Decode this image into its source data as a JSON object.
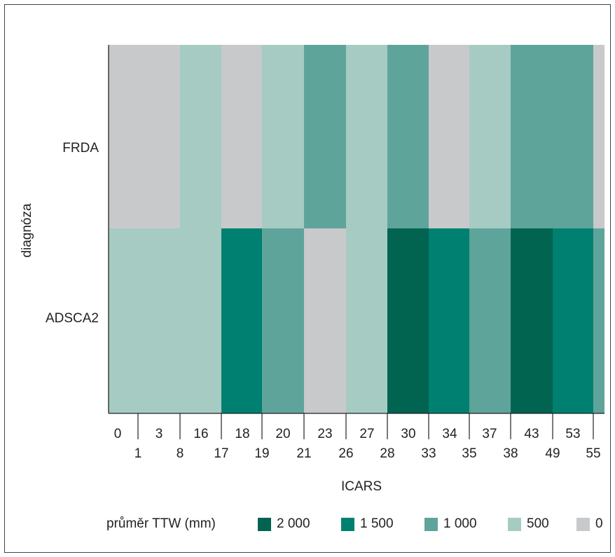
{
  "chart_data": {
    "type": "heatmap",
    "title": "",
    "xlabel": "ICARS",
    "ylabel": "diagnóza",
    "rows": [
      "FRDA",
      "ADSCA2"
    ],
    "x_edges": [
      0,
      1,
      3,
      8,
      16,
      17,
      18,
      19,
      20,
      21,
      23,
      26,
      27,
      28,
      30,
      33,
      34,
      35,
      37,
      38,
      43,
      49,
      53,
      55
    ],
    "cells": {
      "FRDA": [
        {
          "from": 0,
          "to": 8,
          "value": 0
        },
        {
          "from": 8,
          "to": 17,
          "value": 500
        },
        {
          "from": 17,
          "to": 19,
          "value": 0
        },
        {
          "from": 19,
          "to": 21,
          "value": 500
        },
        {
          "from": 21,
          "to": 26,
          "value": 1000
        },
        {
          "from": 26,
          "to": 28,
          "value": 500
        },
        {
          "from": 28,
          "to": 33,
          "value": 1000
        },
        {
          "from": 33,
          "to": 35,
          "value": 0
        },
        {
          "from": 35,
          "to": 38,
          "value": 500
        },
        {
          "from": 38,
          "to": 55,
          "value": 1000
        },
        {
          "from": 55,
          "to": null,
          "value": 0
        }
      ],
      "ADSCA2": [
        {
          "from": 0,
          "to": 17,
          "value": 500
        },
        {
          "from": 17,
          "to": 19,
          "value": 1500
        },
        {
          "from": 19,
          "to": 21,
          "value": 1000
        },
        {
          "from": 21,
          "to": 26,
          "value": 0
        },
        {
          "from": 26,
          "to": 28,
          "value": 500
        },
        {
          "from": 28,
          "to": 33,
          "value": 2000
        },
        {
          "from": 33,
          "to": 35,
          "value": 1500
        },
        {
          "from": 35,
          "to": 38,
          "value": 1000
        },
        {
          "from": 38,
          "to": 49,
          "value": 2000
        },
        {
          "from": 49,
          "to": 55,
          "value": 1500
        },
        {
          "from": 55,
          "to": null,
          "value": 1000
        }
      ]
    },
    "x_tick_labels_upper": [
      "0",
      "3",
      "16",
      "18",
      "20",
      "23",
      "27",
      "30",
      "34",
      "37",
      "43",
      "53"
    ],
    "x_tick_labels_lower": [
      "1",
      "8",
      "17",
      "19",
      "21",
      "26",
      "28",
      "33",
      "35",
      "38",
      "49",
      "55"
    ],
    "legend": {
      "title": "průměr TTW (mm)",
      "position": "bottom",
      "items": [
        {
          "label": "2 000",
          "value": 2000,
          "color": "#006450"
        },
        {
          "label": "1 500",
          "value": 1500,
          "color": "#008070"
        },
        {
          "label": "1 000",
          "value": 1000,
          "color": "#5fa49a"
        },
        {
          "label": "500",
          "value": 500,
          "color": "#a6cbc3"
        },
        {
          "label": "0",
          "value": 0,
          "color": "#c8c9cb"
        }
      ]
    }
  }
}
